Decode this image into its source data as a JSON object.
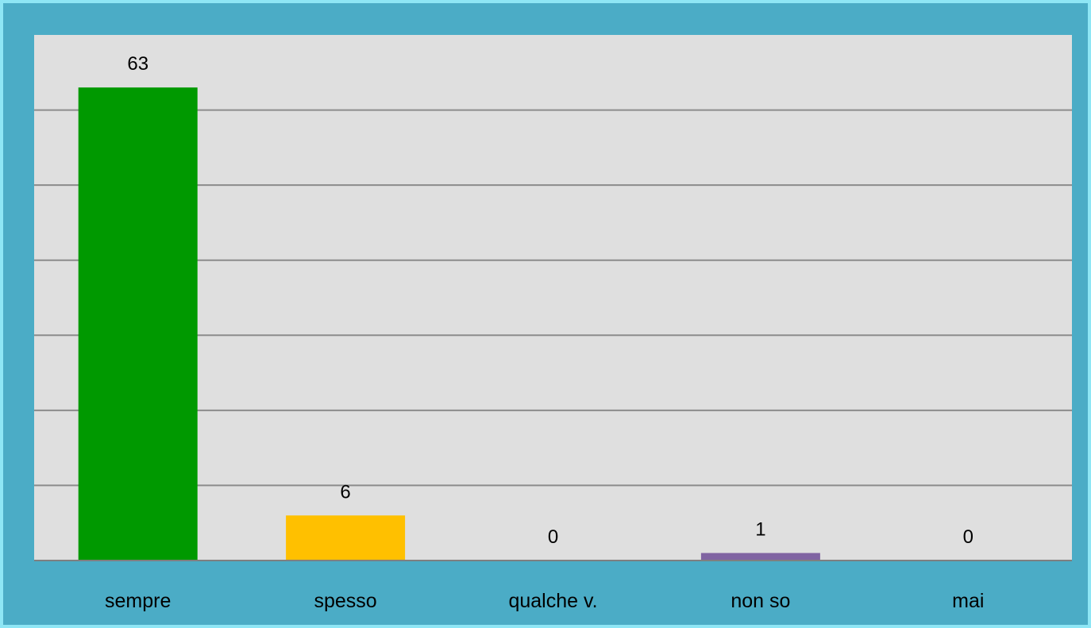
{
  "chart_data": {
    "type": "bar",
    "categories": [
      "sempre",
      "spesso",
      "qualche v.",
      "non so",
      "mai"
    ],
    "values": [
      63,
      6,
      0,
      1,
      0
    ],
    "ylim": [
      0,
      70
    ],
    "grid": true,
    "legend": "none",
    "colors": [
      "#009900",
      "#ffc000",
      "#7f7f7f",
      "#8064a2",
      "#7f7f7f"
    ],
    "plot_background": "#dfdfdf",
    "gridline_color": "#8c8c8c"
  }
}
